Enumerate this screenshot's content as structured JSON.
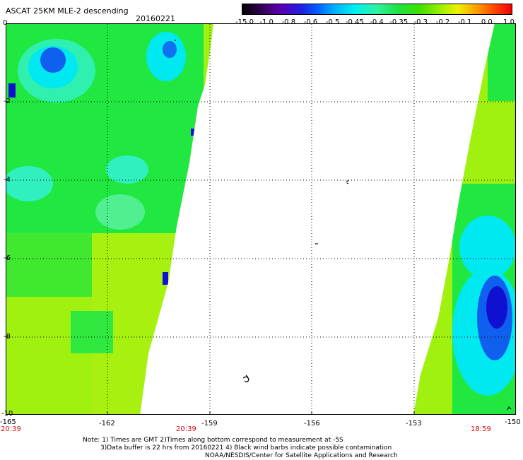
{
  "header": {
    "title": "ASCAT 25KM MLE-2 descending",
    "date": "20160221"
  },
  "colorbar": {
    "labels": [
      "-15.0",
      "-1.0",
      "-0.8",
      "-0.6",
      "-0.5",
      "-0.45",
      "-0.4",
      "-0.35",
      "-0.3",
      "-0.2",
      "-0.1",
      "0.0",
      "1.0"
    ]
  },
  "axes": {
    "lat_labels": [
      "0",
      "-2",
      "-4",
      "-6",
      "-8",
      "-10"
    ],
    "lon_labels": [
      "-165",
      "-162",
      "-159",
      "-156",
      "-153",
      "-150"
    ]
  },
  "time_labels": [
    "20:39",
    "20:39",
    "18:59"
  ],
  "notes": {
    "line1": "Note: 1) Times are GMT 2)Times along bottom correspond to measurement at -5S",
    "line2": "3)Data buffer is 22 hrs from 20160221 4) Black wind barbs indicate possible contamination",
    "line3": "NOAA/NESDIS/Center for Satellite Applications and Research"
  },
  "colors": {
    "deep_blue": "#1010d0",
    "blue": "#1060f0",
    "cyan": "#00e8f0",
    "aqua": "#30f0b0",
    "green": "#20e840",
    "lime": "#a0f010",
    "yellow_green": "#c0f020"
  }
}
